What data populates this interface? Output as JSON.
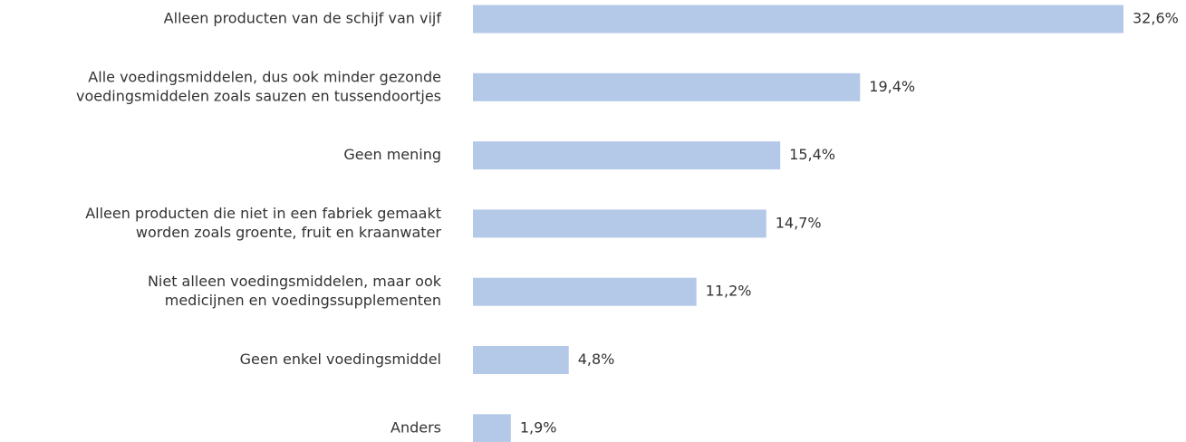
{
  "chart_data": {
    "type": "bar",
    "orientation": "horizontal",
    "categories": [
      [
        "Alleen producten van de schijf van vijf"
      ],
      [
        "Alle voedingsmiddelen, dus ook minder gezonde",
        "voedingsmiddelen zoals sauzen en tussendoortjes"
      ],
      [
        "Geen mening"
      ],
      [
        "Alleen producten die niet in een fabriek gemaakt",
        "worden zoals groente, fruit en kraanwater"
      ],
      [
        "Niet alleen voedingsmiddelen, maar ook",
        "medicijnen en voedingssupplementen"
      ],
      [
        "Geen enkel voedingsmiddel"
      ],
      [
        "Anders"
      ]
    ],
    "values": [
      32.6,
      19.4,
      15.4,
      14.7,
      11.2,
      4.8,
      1.9
    ],
    "value_labels": [
      "32,6%",
      "19,4%",
      "15,4%",
      "14,7%",
      "11,2%",
      "4,8%",
      "1,9%"
    ],
    "color": "#b4c9e8"
  }
}
